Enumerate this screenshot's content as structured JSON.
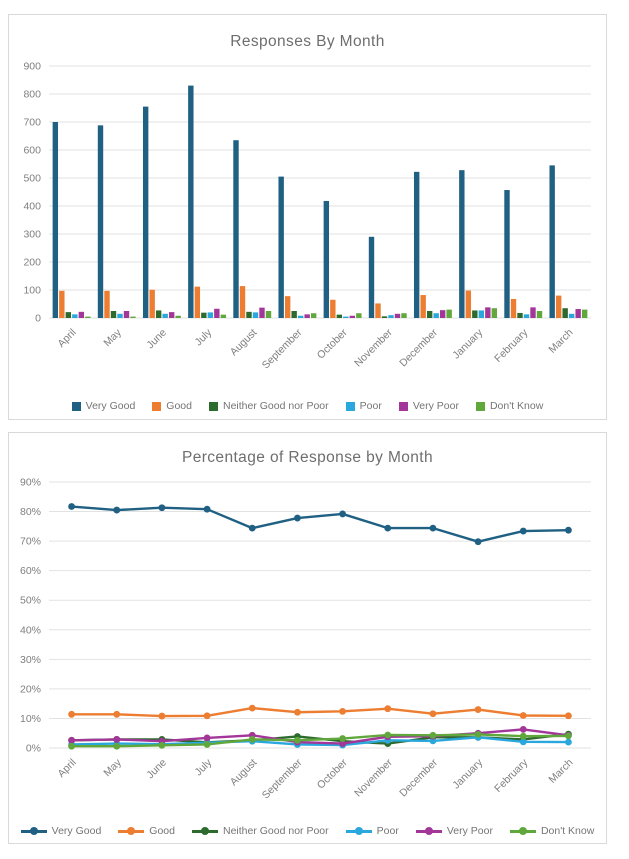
{
  "style": {
    "panel_border_color": "#D9D9D9",
    "grid_color": "#E2E2E2",
    "axis_text_color": "#7F7F7F",
    "title_color": "#6E6E6E",
    "legend_text_color": "#757575"
  },
  "chart_data": [
    {
      "type": "bar",
      "title": "Responses By Month",
      "categories": [
        "April",
        "May",
        "June",
        "July",
        "August",
        "September",
        "October",
        "November",
        "December",
        "January",
        "February",
        "March"
      ],
      "series": [
        {
          "name": "Very Good",
          "color": "#1F6083",
          "values": [
            700,
            688,
            755,
            830,
            635,
            505,
            418,
            290,
            522,
            528,
            457,
            545
          ]
        },
        {
          "name": "Good",
          "color": "#ED7D31",
          "values": [
            97,
            97,
            101,
            112,
            114,
            78,
            65,
            52,
            82,
            98,
            68,
            80
          ]
        },
        {
          "name": "Neither Good nor Poor",
          "color": "#2D6A2E",
          "values": [
            21,
            25,
            27,
            19,
            22,
            25,
            12,
            6,
            25,
            27,
            18,
            35
          ]
        },
        {
          "name": "Poor",
          "color": "#2AA7DC",
          "values": [
            13,
            15,
            15,
            20,
            20,
            8,
            5,
            10,
            17,
            27,
            13,
            15
          ]
        },
        {
          "name": "Very Poor",
          "color": "#A23699",
          "values": [
            22,
            25,
            21,
            33,
            37,
            13,
            8,
            15,
            28,
            38,
            38,
            32
          ]
        },
        {
          "name": "Don't Know",
          "color": "#61A83C",
          "values": [
            5,
            5,
            8,
            12,
            25,
            17,
            17,
            17,
            30,
            35,
            25,
            30
          ]
        }
      ],
      "ylim": [
        0,
        900
      ],
      "ytick_step": 100,
      "yformat": "number",
      "grid": true,
      "legend_position": "bottom",
      "legend_marker": "square"
    },
    {
      "type": "line",
      "title": "Percentage of Response by Month",
      "categories": [
        "April",
        "May",
        "June",
        "July",
        "August",
        "September",
        "October",
        "November",
        "December",
        "January",
        "February",
        "March"
      ],
      "series": [
        {
          "name": "Very Good",
          "color": "#1F6083",
          "values": [
            81.7,
            80.5,
            81.3,
            80.8,
            74.4,
            77.8,
            79.2,
            74.4,
            74.4,
            69.8,
            73.4,
            73.7
          ]
        },
        {
          "name": "Good",
          "color": "#ED7D31",
          "values": [
            11.4,
            11.4,
            10.8,
            10.9,
            13.5,
            12.1,
            12.4,
            13.3,
            11.6,
            13.0,
            11.0,
            10.9
          ]
        },
        {
          "name": "Neither Good nor Poor",
          "color": "#2D6A2E",
          "values": [
            2.6,
            2.9,
            2.9,
            1.9,
            2.6,
            3.9,
            2.3,
            1.5,
            3.6,
            3.6,
            2.9,
            4.7
          ]
        },
        {
          "name": "Poor",
          "color": "#2AA7DC",
          "values": [
            1.2,
            1.5,
            1.3,
            1.8,
            2.3,
            1.2,
            1.0,
            2.6,
            2.4,
            3.6,
            2.1,
            2.0
          ]
        },
        {
          "name": "Very Poor",
          "color": "#A23699",
          "values": [
            2.6,
            2.9,
            2.3,
            3.4,
            4.3,
            2.0,
            1.5,
            3.8,
            4.0,
            5.0,
            6.3,
            4.3
          ]
        },
        {
          "name": "Don't Know",
          "color": "#61A83C",
          "values": [
            0.6,
            0.6,
            0.9,
            1.2,
            2.9,
            2.6,
            3.2,
            4.4,
            4.3,
            4.6,
            4.0,
            4.1
          ]
        }
      ],
      "ylim": [
        0,
        90
      ],
      "ytick_step": 10,
      "yformat": "percent",
      "grid": true,
      "legend_position": "bottom",
      "legend_marker": "line"
    }
  ]
}
